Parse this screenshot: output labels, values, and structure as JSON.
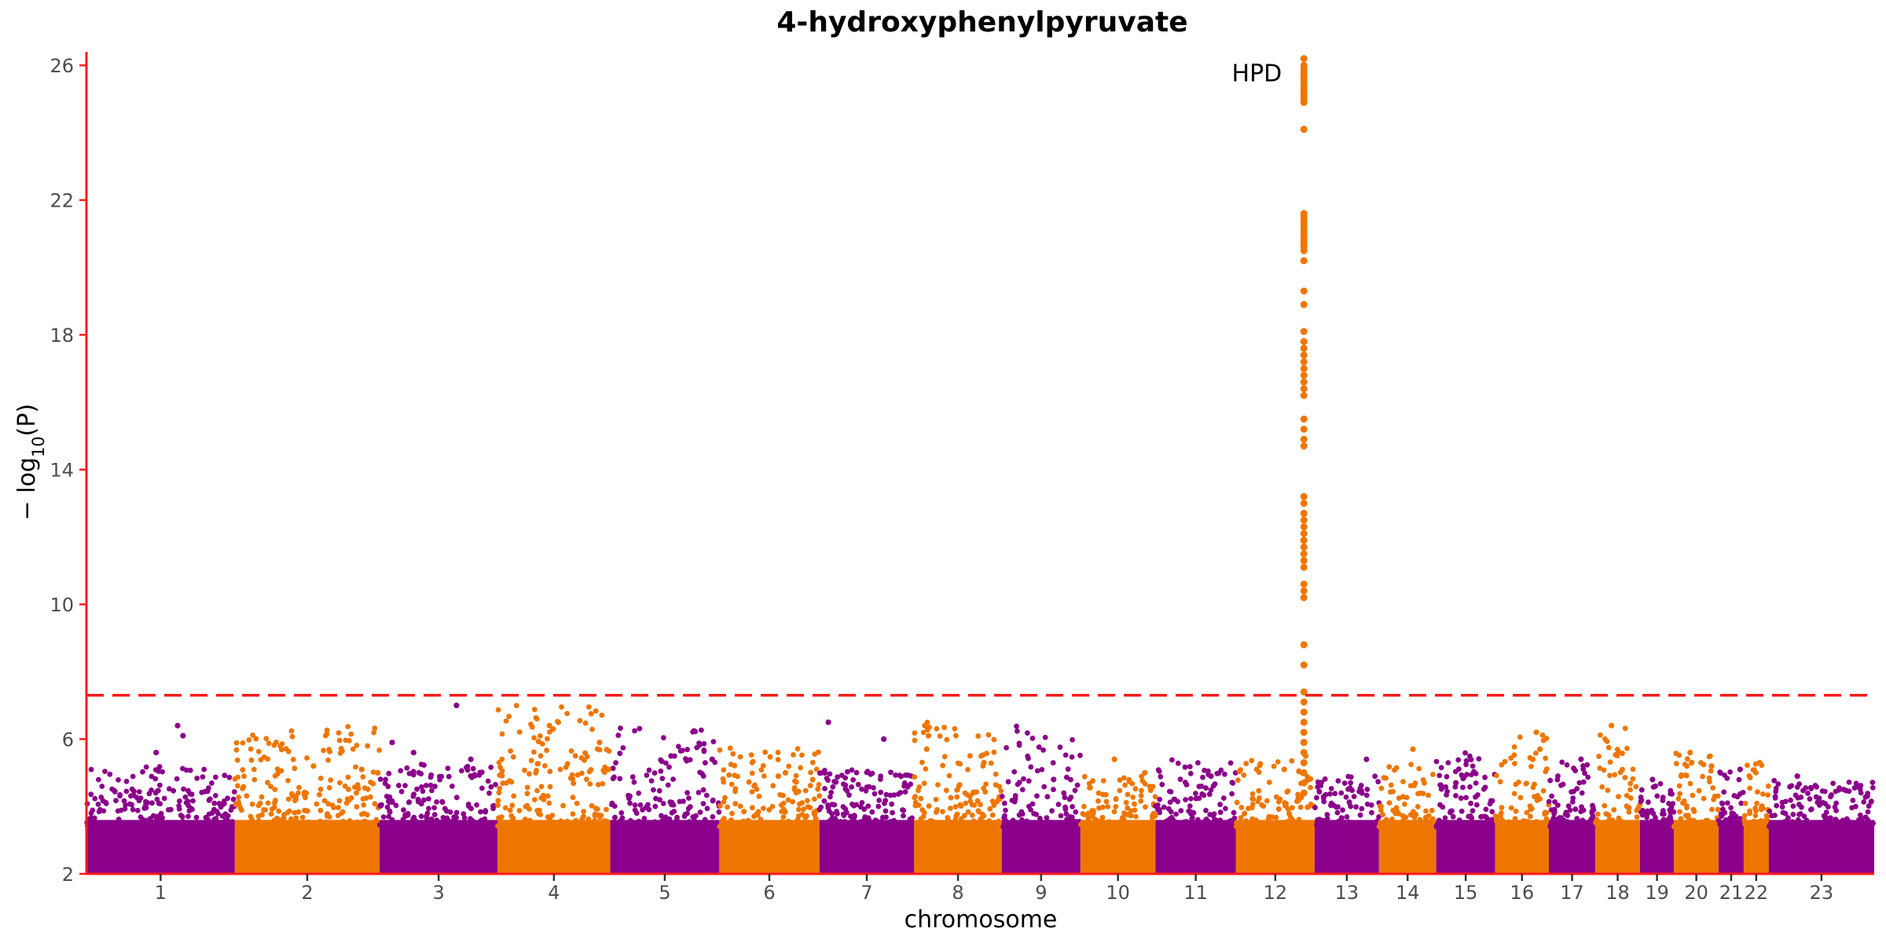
{
  "chart_data": {
    "type": "scatter",
    "subtype": "manhattan",
    "title": "4-hydroxyphenylpyruvate",
    "xlabel": "chromosome",
    "ylabel": "− log10(P)",
    "ylabel_parts": {
      "prefix": "− log",
      "sub": "10",
      "suffix": "(P)"
    },
    "ylim": [
      2,
      26.4
    ],
    "yticks": [
      "2",
      "6",
      "10",
      "14",
      "18",
      "22",
      "26"
    ],
    "ytick_values": [
      2,
      6,
      10,
      14,
      18,
      22,
      26
    ],
    "significance_threshold": 7.3,
    "threshold_style": "dashed",
    "threshold_color": "#ff1a1a",
    "axis_color": "#ff1a1a",
    "colors": [
      "#8b008b",
      "#ee7600"
    ],
    "chromosomes": [
      {
        "label": "1",
        "x0": 0.0,
        "x1": 8.3
      },
      {
        "label": "2",
        "x0": 8.3,
        "x1": 16.4
      },
      {
        "label": "3",
        "x0": 16.4,
        "x1": 23.0
      },
      {
        "label": "4",
        "x0": 23.0,
        "x1": 29.3
      },
      {
        "label": "5",
        "x0": 29.3,
        "x1": 35.4
      },
      {
        "label": "6",
        "x0": 35.4,
        "x1": 41.0
      },
      {
        "label": "7",
        "x0": 41.0,
        "x1": 46.3
      },
      {
        "label": "8",
        "x0": 46.3,
        "x1": 51.2
      },
      {
        "label": "9",
        "x0": 51.2,
        "x1": 55.6
      },
      {
        "label": "10",
        "x0": 55.6,
        "x1": 59.8
      },
      {
        "label": "11",
        "x0": 59.8,
        "x1": 64.3
      },
      {
        "label": "12",
        "x0": 64.3,
        "x1": 68.7
      },
      {
        "label": "13",
        "x0": 68.7,
        "x1": 72.3
      },
      {
        "label": "14",
        "x0": 72.3,
        "x1": 75.5
      },
      {
        "label": "15",
        "x0": 75.5,
        "x1": 78.8
      },
      {
        "label": "16",
        "x0": 78.8,
        "x1": 81.8
      },
      {
        "label": "17",
        "x0": 81.8,
        "x1": 84.4
      },
      {
        "label": "18",
        "x0": 84.4,
        "x1": 86.9
      },
      {
        "label": "19",
        "x0": 86.9,
        "x1": 88.8
      },
      {
        "label": "20",
        "x0": 88.8,
        "x1": 91.3
      },
      {
        "label": "21",
        "x0": 91.3,
        "x1": 92.7
      },
      {
        "label": "22",
        "x0": 92.7,
        "x1": 94.1
      },
      {
        "label": "23",
        "x0": 94.1,
        "x1": 100.0
      }
    ],
    "background_max": [
      5.2,
      6.4,
      5.3,
      7.0,
      6.4,
      5.8,
      5.1,
      6.5,
      6.4,
      4.9,
      5.4,
      5.4,
      4.9,
      5.4,
      5.6,
      6.2,
      5.4,
      6.4,
      4.8,
      5.6,
      5.1,
      5.3,
      4.8
    ],
    "background_points": [
      {
        "x": 3.9,
        "y": 5.6
      },
      {
        "x": 5.1,
        "y": 6.4
      },
      {
        "x": 5.4,
        "y": 6.1
      },
      {
        "x": 12.7,
        "y": 5.2
      },
      {
        "x": 15.4,
        "y": 5.1
      },
      {
        "x": 16.3,
        "y": 5.0
      },
      {
        "x": 17.1,
        "y": 5.9
      },
      {
        "x": 18.3,
        "y": 5.6
      },
      {
        "x": 20.7,
        "y": 7.0
      },
      {
        "x": 21.5,
        "y": 5.4
      },
      {
        "x": 25.9,
        "y": 6.4
      },
      {
        "x": 26.1,
        "y": 6.3
      },
      {
        "x": 28.7,
        "y": 5.9
      },
      {
        "x": 29.2,
        "y": 5.1
      },
      {
        "x": 32.7,
        "y": 5.5
      },
      {
        "x": 35.0,
        "y": 5.4
      },
      {
        "x": 38.7,
        "y": 4.9
      },
      {
        "x": 39.1,
        "y": 5.0
      },
      {
        "x": 41.3,
        "y": 5.0
      },
      {
        "x": 41.5,
        "y": 6.5
      },
      {
        "x": 44.6,
        "y": 6.0
      },
      {
        "x": 46.9,
        "y": 6.4
      },
      {
        "x": 47.1,
        "y": 6.1
      },
      {
        "x": 47.0,
        "y": 5.7
      },
      {
        "x": 50.2,
        "y": 5.3
      },
      {
        "x": 54.1,
        "y": 4.8
      },
      {
        "x": 57.5,
        "y": 5.4
      },
      {
        "x": 59.2,
        "y": 5.0
      },
      {
        "x": 62.9,
        "y": 4.9
      },
      {
        "x": 67.0,
        "y": 5.1
      },
      {
        "x": 68.2,
        "y": 5.5
      },
      {
        "x": 71.6,
        "y": 5.4
      },
      {
        "x": 74.2,
        "y": 5.7
      },
      {
        "x": 76.6,
        "y": 4.7
      },
      {
        "x": 81.1,
        "y": 6.2
      },
      {
        "x": 81.3,
        "y": 5.7
      },
      {
        "x": 80.9,
        "y": 5.4
      },
      {
        "x": 83.6,
        "y": 5.4
      },
      {
        "x": 85.3,
        "y": 6.4
      },
      {
        "x": 87.6,
        "y": 4.8
      },
      {
        "x": 89.7,
        "y": 5.6
      },
      {
        "x": 90.9,
        "y": 5.2
      },
      {
        "x": 92.5,
        "y": 5.1
      },
      {
        "x": 93.6,
        "y": 5.3
      },
      {
        "x": 95.7,
        "y": 4.9
      },
      {
        "x": 98.3,
        "y": 4.5
      }
    ],
    "peak": {
      "chromosome": "12",
      "x": 68.1,
      "y_values": [
        26.2,
        26.0,
        25.9,
        25.8,
        25.7,
        25.6,
        25.5,
        25.4,
        25.3,
        25.2,
        25.1,
        25.0,
        24.9,
        24.1,
        21.6,
        21.5,
        21.4,
        21.3,
        21.2,
        21.1,
        21.0,
        20.9,
        20.8,
        20.7,
        20.6,
        20.5,
        20.2,
        19.3,
        18.9,
        18.1,
        17.8,
        17.6,
        17.4,
        17.2,
        17.0,
        16.8,
        16.6,
        16.4,
        16.2,
        15.5,
        15.2,
        14.9,
        14.7,
        13.2,
        13.0,
        12.7,
        12.5,
        12.3,
        12.1,
        11.9,
        11.7,
        11.5,
        11.3,
        11.1,
        10.6,
        10.4,
        10.2,
        8.8,
        8.2,
        7.4,
        7.1,
        6.8,
        6.5,
        6.2,
        5.9,
        5.6,
        5.3,
        5.0,
        4.7,
        4.4
      ],
      "label": "HPD"
    }
  }
}
